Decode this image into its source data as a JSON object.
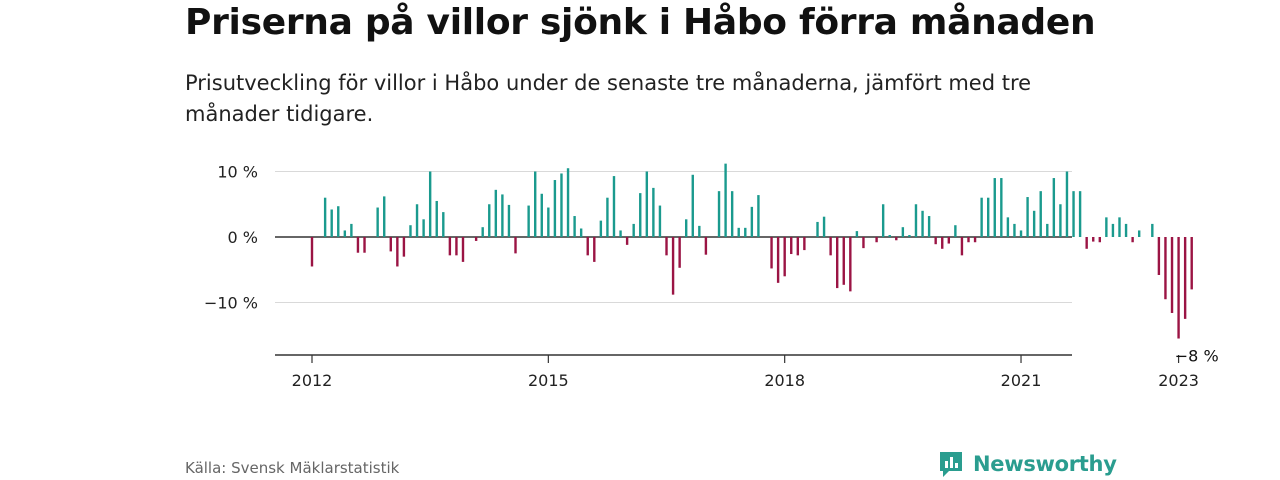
{
  "header": {
    "title": "Priserna på villor sjönk i Håbo förra månaden",
    "subtitle": "Prisutveckling för villor i Håbo under de senaste tre månaderna, jämfört med tre månader tidigare."
  },
  "footer": {
    "source": "Källa: Svensk Mäklarstatistik",
    "brand": "Newsworthy",
    "brand_icon": "bar-chart-bubble-icon"
  },
  "colors": {
    "positive": "#1a9a8e",
    "negative": "#9b1444",
    "brand": "#2a9d8f"
  },
  "chart_data": {
    "type": "bar",
    "x_start": "2012-01",
    "x_ticks": [
      "2012",
      "2015",
      "2018",
      "2021",
      "2023"
    ],
    "y_ticks": [
      "10 %",
      "0 %",
      "−10 %"
    ],
    "ylim": [
      -18,
      11
    ],
    "grid": true,
    "annotation": {
      "text": "−8 %",
      "date": "2023-01",
      "value": -8
    },
    "values": [
      -4.5,
      0,
      6,
      4.2,
      4.7,
      1,
      2,
      -2.4,
      -2.4,
      0,
      4.5,
      6.2,
      -2.2,
      -4.5,
      -3,
      1.8,
      5,
      2.7,
      10,
      5.5,
      3.8,
      -2.8,
      -2.8,
      -3.8,
      0,
      -0.6,
      1.5,
      5,
      7.2,
      6.5,
      4.9,
      -2.5,
      0,
      4.8,
      10,
      6.6,
      4.5,
      8.7,
      9.7,
      10.5,
      3.2,
      1.3,
      -2.8,
      -3.8,
      2.5,
      6,
      9.3,
      1,
      -1.2,
      2,
      6.7,
      10,
      7.5,
      4.8,
      -2.8,
      -8.8,
      -4.7,
      2.7,
      9.5,
      1.7,
      -2.7,
      0,
      7,
      11.2,
      7,
      1.4,
      1.4,
      4.6,
      6.4,
      0,
      -4.8,
      -7,
      -6,
      -2.6,
      -2.8,
      -2,
      0,
      2.3,
      3.1,
      -2.8,
      -7.8,
      -7.3,
      -8.3,
      0.9,
      -1.7,
      0,
      -0.8,
      5,
      0.3,
      -0.5,
      1.5,
      0.3,
      5,
      4,
      3.2,
      -1.1,
      -1.8,
      -1,
      1.8,
      -2.8,
      -0.8,
      -0.8,
      6,
      6,
      9,
      9,
      3,
      2,
      1,
      6.1,
      4,
      7,
      2,
      9,
      5,
      10,
      7,
      7,
      -1.8,
      -0.7,
      -0.8,
      3,
      2,
      3,
      2,
      -0.8,
      1,
      0,
      2,
      -5.8,
      -9.5,
      -11.6,
      -15.5,
      -12.5,
      -8
    ]
  }
}
